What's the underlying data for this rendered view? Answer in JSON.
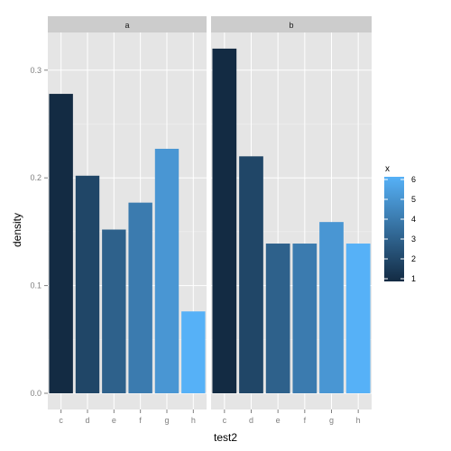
{
  "chart_data": {
    "type": "bar",
    "facets": [
      "a",
      "b"
    ],
    "categories": [
      "c",
      "d",
      "e",
      "f",
      "g",
      "h"
    ],
    "panels": [
      {
        "facet": "a",
        "values": [
          0.278,
          0.202,
          0.152,
          0.177,
          0.227,
          0.076
        ]
      },
      {
        "facet": "b",
        "values": [
          0.32,
          0.22,
          0.139,
          0.139,
          0.159,
          0.139
        ]
      }
    ],
    "fill_x": [
      1,
      2,
      3,
      4,
      5,
      6
    ],
    "xlabel": "test2",
    "ylabel": "density",
    "ylim": [
      0,
      0.335
    ],
    "yticks": [
      0.0,
      0.1,
      0.2,
      0.3
    ],
    "ytick_labels": [
      "0.0",
      "0.1",
      "0.2",
      "0.3"
    ],
    "grid": true,
    "legend": {
      "title": "x",
      "placement": "right",
      "range": [
        1,
        6
      ],
      "ticks": [
        "1",
        "2",
        "3",
        "4",
        "5",
        "6"
      ],
      "color_low": "#132B43",
      "color_high": "#56B1F7"
    },
    "colors": {
      "panel_bg": "#E5E5E5",
      "strip_bg": "#CCCCCC",
      "gridline": "#FFFFFF"
    }
  }
}
